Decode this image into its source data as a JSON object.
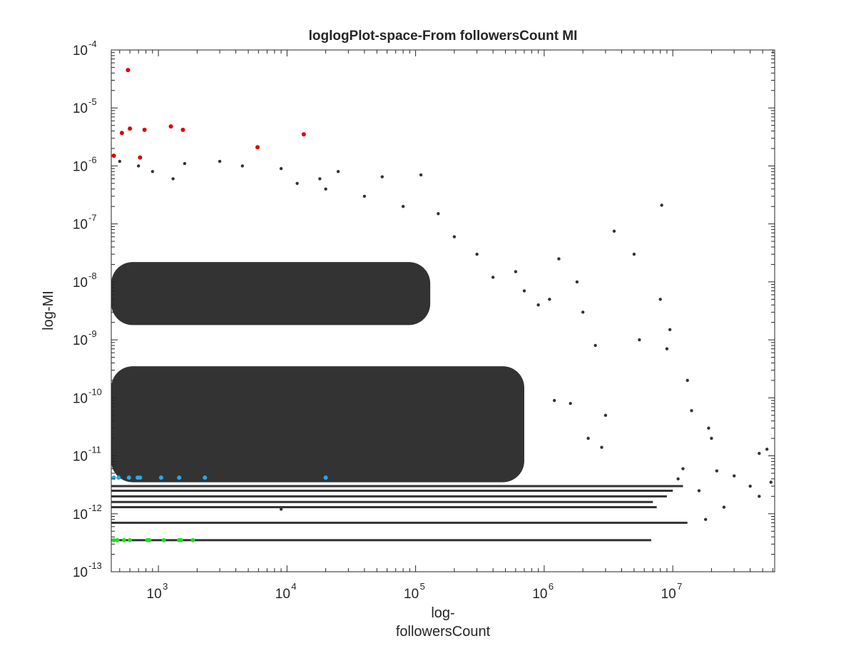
{
  "chart_data": {
    "type": "scatter",
    "title": "loglogPlot-space-From followersCount MI",
    "xlabel_lines": [
      "log-",
      "followersCount"
    ],
    "ylabel": "log-MI",
    "xscale": "log",
    "yscale": "log",
    "xlim": [
      430,
      62000000
    ],
    "ylim": [
      1e-13,
      0.0001
    ],
    "grid": false,
    "legend": "none",
    "x_ticks": [
      {
        "value": 1000,
        "base": "10",
        "exp": "3"
      },
      {
        "value": 10000,
        "base": "10",
        "exp": "4"
      },
      {
        "value": 100000,
        "base": "10",
        "exp": "5"
      },
      {
        "value": 1000000,
        "base": "10",
        "exp": "6"
      },
      {
        "value": 10000000,
        "base": "10",
        "exp": "7"
      }
    ],
    "y_ticks": [
      {
        "value": 1e-13,
        "base": "10",
        "exp": "-13"
      },
      {
        "value": 1e-12,
        "base": "10",
        "exp": "-12"
      },
      {
        "value": 1e-11,
        "base": "10",
        "exp": "-11"
      },
      {
        "value": 1e-10,
        "base": "10",
        "exp": "-10"
      },
      {
        "value": 1e-09,
        "base": "10",
        "exp": "-9"
      },
      {
        "value": 1e-08,
        "base": "10",
        "exp": "-8"
      },
      {
        "value": 1e-07,
        "base": "10",
        "exp": "-7"
      },
      {
        "value": 1e-06,
        "base": "10",
        "exp": "-6"
      },
      {
        "value": 1e-05,
        "base": "10",
        "exp": "-5"
      },
      {
        "value": 0.0001,
        "base": "10",
        "exp": "-4"
      }
    ],
    "series": [
      {
        "color": "#333333",
        "points": [
          [
            500,
            1.2e-06
          ],
          [
            700,
            1e-06
          ],
          [
            900,
            8e-07
          ],
          [
            1300,
            6e-07
          ],
          [
            1600,
            1.1e-06
          ],
          [
            3000,
            1.2e-06
          ],
          [
            4500,
            1e-06
          ],
          [
            9000,
            9e-07
          ],
          [
            18000,
            6e-07
          ],
          [
            25000,
            8e-07
          ],
          [
            55000,
            6.5e-07
          ],
          [
            110000,
            7e-07
          ],
          [
            9000,
            1.1e-11
          ],
          [
            8200000,
            2.1e-07
          ],
          [
            5000000,
            3e-08
          ],
          [
            3500000,
            7.5e-08
          ],
          [
            1300000,
            2.5e-08
          ],
          [
            8000000,
            5e-09
          ],
          [
            9500000,
            1.5e-09
          ],
          [
            2500000,
            8e-10
          ],
          [
            5500000,
            1e-09
          ],
          [
            9000000,
            7e-10
          ],
          [
            13000000,
            2e-10
          ],
          [
            14000000,
            6e-11
          ],
          [
            19000000,
            3e-11
          ],
          [
            20000000,
            2e-11
          ],
          [
            22000000,
            5.5e-12
          ],
          [
            30000000,
            4.5e-12
          ],
          [
            40000000,
            3e-12
          ],
          [
            47000000,
            2e-12
          ],
          [
            58000000,
            3.5e-12
          ],
          [
            54000000,
            1.3e-11
          ],
          [
            47000000,
            1.1e-11
          ],
          [
            12000000,
            6e-12
          ],
          [
            11000000,
            4e-12
          ],
          [
            16000000,
            2.5e-12
          ],
          [
            25000000,
            1.3e-12
          ],
          [
            18000000,
            8e-13
          ],
          [
            2800000,
            1.4e-11
          ],
          [
            2200000,
            2e-11
          ],
          [
            3000000,
            5e-11
          ],
          [
            1600000,
            8e-11
          ],
          [
            1200000,
            9e-11
          ],
          [
            9000,
            1.2e-12
          ],
          [
            700000,
            7e-09
          ],
          [
            900000,
            4e-09
          ],
          [
            1100000,
            5e-09
          ],
          [
            2000000,
            3e-09
          ],
          [
            1800000,
            1e-08
          ],
          [
            600000,
            1.5e-08
          ],
          [
            400000,
            1.2e-08
          ],
          [
            300000,
            3e-08
          ],
          [
            200000,
            6e-08
          ],
          [
            150000,
            1.5e-07
          ],
          [
            80000,
            2e-07
          ],
          [
            40000,
            3e-07
          ],
          [
            20000,
            4e-07
          ],
          [
            12000,
            5e-07
          ]
        ]
      },
      {
        "color": "#dd0000",
        "points": [
          [
            580,
            4.5e-05
          ],
          [
            520,
            3.7e-06
          ],
          [
            600,
            4.4e-06
          ],
          [
            780,
            4.2e-06
          ],
          [
            1250,
            4.8e-06
          ],
          [
            1550,
            4.2e-06
          ],
          [
            13500,
            3.5e-06
          ],
          [
            5900,
            2.1e-06
          ],
          [
            720,
            1.4e-06
          ],
          [
            450,
            1.5e-06
          ]
        ]
      },
      {
        "color": "#22aaee",
        "points": [
          [
            450,
            4.2e-12
          ],
          [
            490,
            4.2e-12
          ],
          [
            590,
            4.2e-12
          ],
          [
            690,
            4.2e-12
          ],
          [
            720,
            4.2e-12
          ],
          [
            1050,
            4.2e-12
          ],
          [
            1450,
            4.2e-12
          ],
          [
            2300,
            4.2e-12
          ],
          [
            20000,
            4.2e-12
          ]
        ]
      },
      {
        "color": "#22dd22",
        "points": [
          [
            450,
            3.5e-13
          ],
          [
            480,
            3.5e-13
          ],
          [
            540,
            3.5e-13
          ],
          [
            600,
            3.5e-13
          ],
          [
            820,
            3.5e-13
          ],
          [
            850,
            3.5e-13
          ],
          [
            1100,
            3.5e-13
          ],
          [
            1450,
            3.5e-13
          ],
          [
            1500,
            3.5e-13
          ],
          [
            1850,
            3.5e-13
          ]
        ]
      }
    ],
    "dense_regions": {
      "color": "#333333",
      "bands": [
        {
          "x": [
            430,
            130000
          ],
          "y": [
            1.8e-09,
            2.2e-08
          ]
        },
        {
          "x": [
            430,
            700000
          ],
          "y": [
            3.5e-12,
            3.5e-10
          ]
        }
      ],
      "streaks": [
        {
          "y": 3e-12,
          "x": [
            430,
            12000000
          ]
        },
        {
          "y": 2.5e-12,
          "x": [
            430,
            10000000
          ]
        },
        {
          "y": 2e-12,
          "x": [
            430,
            9000000
          ]
        },
        {
          "y": 1.6e-12,
          "x": [
            430,
            7000000
          ]
        },
        {
          "y": 1.3e-12,
          "x": [
            430,
            7500000
          ]
        },
        {
          "y": 7e-13,
          "x": [
            430,
            13000000
          ]
        },
        {
          "y": 3.5e-13,
          "x": [
            430,
            6800000
          ]
        }
      ]
    }
  }
}
